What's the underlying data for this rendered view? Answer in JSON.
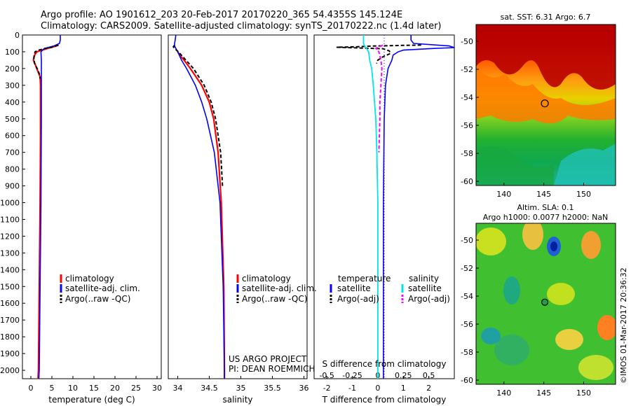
{
  "header": {
    "line1": "Argo profile: AO 1901612_203 20-Feb-2017 20170220_365 54.4355S 145.124E",
    "line2": "Climatology: CARS2009. Satellite-adjusted climatology: synTS_20170222.nc (1.4d later)"
  },
  "colors": {
    "climatology": "#ff0000",
    "satellite": "#0000ff",
    "argo": "#000000",
    "salinity_satellite": "#00e5e5",
    "salinity_argo": "#ff00ff"
  },
  "depth_ticks": [
    "0",
    "100",
    "200",
    "300",
    "400",
    "500",
    "600",
    "700",
    "800",
    "900",
    "1000",
    "1100",
    "1200",
    "1300",
    "1400",
    "1500",
    "1600",
    "1700",
    "1800",
    "1900",
    "2000"
  ],
  "legend_profile": {
    "climatology": "climatology",
    "satellite": "satellite-adj. clim.",
    "argo": "Argo(..raw -QC)"
  },
  "legend_diff": {
    "temperature_head": "temperature",
    "salinity_head": "salinity",
    "satellite": "satellite",
    "argo": "Argo(-adj)"
  },
  "project_credit": {
    "line1": "US ARGO PROJECT",
    "line2": "PI: DEAN ROEMMICH"
  },
  "side_stamp": "©IMOS 01-Mar-2017 20:36:32",
  "chart_data": [
    {
      "type": "line",
      "xlabel": "temperature (deg C)",
      "x_ticks": [
        "0",
        "5",
        "10",
        "15",
        "20",
        "25",
        "30"
      ],
      "xlim": [
        -2,
        31
      ],
      "ylim": [
        0,
        2050
      ],
      "y_inverted": true,
      "series": [
        {
          "name": "climatology",
          "depth": [
            60,
            70,
            80,
            100,
            120,
            150,
            180,
            200,
            250,
            300,
            400,
            600,
            1000,
            1500,
            2000,
            2050
          ],
          "values": [
            6.6,
            5.4,
            4.0,
            1.4,
            0.9,
            0.6,
            1.1,
            1.4,
            2.2,
            2.3,
            2.3,
            2.3,
            2.2,
            2.0,
            1.8,
            1.7
          ]
        },
        {
          "name": "satellite-adj. clim.",
          "depth": [
            0,
            30,
            50,
            65,
            80,
            100,
            150,
            200,
            300,
            500,
            1000,
            1500,
            2000,
            2050
          ],
          "values": [
            7.0,
            7.0,
            6.8,
            5.5,
            3.2,
            2.4,
            2.5,
            2.5,
            2.5,
            2.5,
            2.4,
            2.2,
            2.0,
            1.9
          ]
        },
        {
          "name": "Argo(..raw -QC)",
          "depth": [
            60,
            70,
            80,
            90,
            100,
            120,
            140,
            170,
            200,
            230,
            260
          ],
          "values": [
            6.5,
            5.5,
            3.5,
            1.8,
            1.0,
            0.8,
            0.7,
            0.9,
            1.5,
            2.0,
            2.2
          ]
        }
      ]
    },
    {
      "type": "line",
      "xlabel": "salinity",
      "x_ticks": [
        "34",
        "34.5",
        "35",
        "35.5",
        "36"
      ],
      "xlim": [
        33.85,
        36.05
      ],
      "ylim": [
        0,
        2050
      ],
      "y_inverted": true,
      "series": [
        {
          "name": "climatology",
          "depth": [
            100,
            120,
            150,
            200,
            300,
            400,
            500,
            700,
            1000,
            1500,
            2000,
            2050
          ],
          "values": [
            34.0,
            34.03,
            34.1,
            34.2,
            34.38,
            34.5,
            34.57,
            34.64,
            34.69,
            34.73,
            34.74,
            34.74
          ]
        },
        {
          "name": "satellite-adj. clim.",
          "depth": [
            0,
            30,
            50,
            65,
            80,
            100,
            150,
            200,
            300,
            400,
            500,
            700,
            1000,
            1500,
            2000,
            2050
          ],
          "values": [
            33.97,
            33.96,
            33.95,
            33.95,
            33.97,
            34.0,
            34.06,
            34.14,
            34.28,
            34.38,
            34.46,
            34.58,
            34.67,
            34.72,
            34.74,
            34.74
          ]
        },
        {
          "name": "Argo(..raw -QC)",
          "depth": [
            60,
            70,
            80,
            100,
            150,
            200,
            300,
            400,
            500,
            600,
            700,
            900
          ],
          "values": [
            33.95,
            33.93,
            33.95,
            34.01,
            34.13,
            34.25,
            34.42,
            34.53,
            34.6,
            34.64,
            34.68,
            34.71
          ]
        }
      ]
    },
    {
      "type": "line",
      "xlabel": "T difference from climatology",
      "x_ticks": [
        "-2",
        "-1",
        "0",
        "1",
        "2"
      ],
      "xlim": [
        -2.5,
        3.0
      ],
      "secondary_xlabel": "S difference from climatology",
      "secondary_x_ticks": [
        "-0.5",
        "-0.25",
        "0",
        "0.25",
        "0.5"
      ],
      "ylim": [
        0,
        2050
      ],
      "y_inverted": true,
      "series": [
        {
          "name": "temperature satellite",
          "depth": [
            0,
            30,
            50,
            65,
            75,
            80,
            90,
            100,
            120,
            150,
            200,
            300,
            500,
            1000,
            1500,
            2000,
            2050
          ],
          "values": [
            1.3,
            1.3,
            1.4,
            2.8,
            3.0,
            2.2,
            1.0,
            0.8,
            0.6,
            0.55,
            0.4,
            0.3,
            0.25,
            0.22,
            0.22,
            0.22,
            0.22
          ]
        },
        {
          "name": "temperature Argo(-adj)",
          "depth": [
            60,
            62,
            66,
            70,
            73,
            78,
            82,
            95,
            110,
            130,
            150,
            170
          ],
          "values": [
            1.7,
            1.0,
            -0.2,
            -0.8,
            -1.6,
            -0.6,
            0.2,
            0.45,
            0.5,
            0.2,
            0.0,
            -0.05
          ]
        },
        {
          "name": "salinity satellite",
          "depth": [
            0,
            30,
            50,
            65,
            80,
            100,
            150,
            200,
            300,
            500,
            700,
            1000,
            1500,
            2000,
            2050
          ],
          "values": [
            -0.14,
            -0.14,
            -0.14,
            -0.13,
            -0.11,
            -0.09,
            -0.08,
            -0.06,
            -0.045,
            -0.02,
            -0.01,
            0.0,
            0.0,
            0.0,
            0.0
          ]
        },
        {
          "name": "salinity Argo(-adj)",
          "depth": [
            60,
            80,
            100,
            150,
            200,
            300,
            400,
            500,
            600,
            700
          ],
          "values": [
            0.05,
            -0.02,
            0.01,
            0.03,
            0.04,
            0.03,
            0.02,
            0.02,
            0.015,
            0.01
          ]
        }
      ]
    },
    {
      "type": "heatmap",
      "title": "sat. SST: 6.31  Argo: 6.7",
      "x_ticks": [
        "140",
        "145",
        "150"
      ],
      "y_ticks": [
        "-50",
        "-52",
        "-54",
        "-56",
        "-58",
        "-60"
      ],
      "xlim": [
        136.5,
        154
      ],
      "ylim": [
        -60.3,
        -48.8
      ],
      "argo_marker": {
        "lon": 145.124,
        "lat": -54.4355
      }
    },
    {
      "type": "heatmap",
      "title_line1": "Altim. SLA: 0.1",
      "title_line2": "Argo h1000: 0.0077 h2000: NaN",
      "x_ticks": [
        "140",
        "145",
        "150"
      ],
      "y_ticks": [
        "-50",
        "-52",
        "-54",
        "-56",
        "-58",
        "-60"
      ],
      "xlim": [
        136.5,
        154
      ],
      "ylim": [
        -60.3,
        -48.8
      ],
      "argo_marker": {
        "lon": 145.124,
        "lat": -54.4355
      }
    }
  ]
}
